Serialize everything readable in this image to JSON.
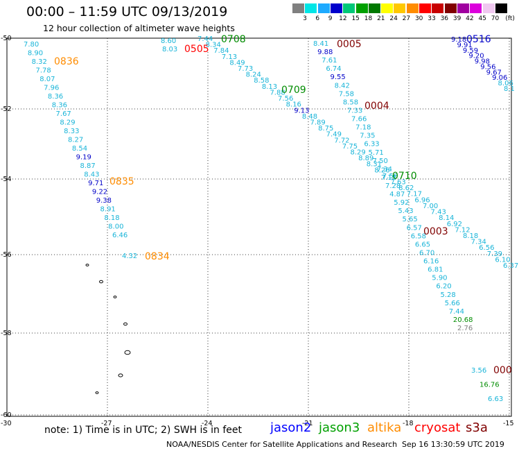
{
  "header": {
    "title": "00:00 – 11:59 UTC 09/13/2019",
    "subtitle": "12 hour collection of altimeter wave heights"
  },
  "legend": {
    "unit": "(ft)",
    "bins": [
      {
        "color": "#808080",
        "label": "3"
      },
      {
        "color": "#00e6e6",
        "label": "6"
      },
      {
        "color": "#1eaaff",
        "label": "9"
      },
      {
        "color": "#0000cc",
        "label": "12"
      },
      {
        "color": "#00c878",
        "label": "15"
      },
      {
        "color": "#00a000",
        "label": "18"
      },
      {
        "color": "#007800",
        "label": "21"
      },
      {
        "color": "#ffff00",
        "label": "24"
      },
      {
        "color": "#ffc800",
        "label": "27"
      },
      {
        "color": "#ff8c00",
        "label": "30"
      },
      {
        "color": "#ff0000",
        "label": "33"
      },
      {
        "color": "#c80000",
        "label": "36"
      },
      {
        "color": "#800000",
        "label": "39"
      },
      {
        "color": "#a000a0",
        "label": "42"
      },
      {
        "color": "#dc00dc",
        "label": "45"
      },
      {
        "color": "#f0c8f0",
        "label": "70"
      },
      {
        "color": "#000000",
        "label": ""
      }
    ]
  },
  "map": {
    "lon_ticks": [
      "-30",
      "-27",
      "-24",
      "-21",
      "-18",
      "-15"
    ],
    "lat_ticks": [
      "-50",
      "-52",
      "-54",
      "-56",
      "-58",
      "-60"
    ],
    "lon_values": [
      -30,
      -27,
      -24,
      -21,
      -18,
      -15
    ],
    "lat_values": [
      -50,
      -52,
      -54,
      -56,
      -58,
      -60
    ]
  },
  "colors": {
    "cyan": "#18b4d8",
    "blue": "#0000c8",
    "orange": "#ff8c00",
    "red": "#ff0000",
    "dkred": "#800000",
    "green": "#008c00",
    "gray": "#808080",
    "jason2": "#0000ff",
    "jason3": "#00a000",
    "altika": "#ff8c00",
    "cryosat": "#ff0000",
    "s3a": "#800000"
  },
  "track_data": [
    {
      "track": "0836",
      "label": "0836",
      "label_color": "orange",
      "readings": [
        {
          "v": "7.80",
          "c": "cyan"
        },
        {
          "v": "8.90",
          "c": "cyan"
        },
        {
          "v": "8.32",
          "c": "cyan"
        },
        {
          "v": "7.78",
          "c": "cyan"
        },
        {
          "v": "8.07",
          "c": "cyan"
        },
        {
          "v": "7.96",
          "c": "cyan"
        },
        {
          "v": "8.36",
          "c": "cyan"
        },
        {
          "v": "8.36",
          "c": "cyan"
        },
        {
          "v": "7.67",
          "c": "cyan"
        },
        {
          "v": "8.29",
          "c": "cyan"
        },
        {
          "v": "8.33",
          "c": "cyan"
        },
        {
          "v": "8.27",
          "c": "cyan"
        },
        {
          "v": "8.54",
          "c": "cyan"
        },
        {
          "v": "9.19",
          "c": "blue"
        },
        {
          "v": "8.87",
          "c": "cyan"
        },
        {
          "v": "8.43",
          "c": "cyan"
        },
        {
          "v": "9.71",
          "c": "blue"
        },
        {
          "v": "9.22",
          "c": "blue"
        },
        {
          "v": "9.38",
          "c": "blue"
        },
        {
          "v": "8.91",
          "c": "cyan"
        },
        {
          "v": "8.18",
          "c": "cyan"
        },
        {
          "v": "8.00",
          "c": "cyan"
        },
        {
          "v": "6.46",
          "c": "cyan"
        }
      ]
    },
    {
      "track": "0835",
      "label": "0835",
      "label_color": "orange",
      "readings": []
    },
    {
      "track": "0834",
      "label": "0834",
      "label_color": "orange",
      "readings": [
        {
          "v": "4.32",
          "c": "cyan"
        }
      ]
    },
    {
      "track": "0505",
      "label": "0505",
      "label_color": "red",
      "readings": [
        {
          "v": "8.60",
          "c": "cyan"
        },
        {
          "v": "8.03",
          "c": "cyan"
        }
      ]
    },
    {
      "track": "0708",
      "label": "0708",
      "label_color": "green",
      "readings": [
        {
          "v": "7.44",
          "c": "cyan"
        },
        {
          "v": "8.34",
          "c": "cyan"
        },
        {
          "v": "7.84",
          "c": "cyan"
        },
        {
          "v": "7.13",
          "c": "cyan"
        },
        {
          "v": "8.49",
          "c": "cyan"
        },
        {
          "v": "7.73",
          "c": "cyan"
        },
        {
          "v": "8.24",
          "c": "cyan"
        },
        {
          "v": "8.58",
          "c": "cyan"
        },
        {
          "v": "8.13",
          "c": "cyan"
        },
        {
          "v": "7.88",
          "c": "cyan"
        },
        {
          "v": "7.56",
          "c": "cyan"
        },
        {
          "v": "8.16",
          "c": "cyan"
        },
        {
          "v": "9.13",
          "c": "blue"
        },
        {
          "v": "8.48",
          "c": "cyan"
        },
        {
          "v": "7.89",
          "c": "cyan"
        },
        {
          "v": "8.75",
          "c": "cyan"
        },
        {
          "v": "7.49",
          "c": "cyan"
        },
        {
          "v": "7.72",
          "c": "cyan"
        },
        {
          "v": "7.75",
          "c": "cyan"
        },
        {
          "v": "8.29",
          "c": "cyan"
        },
        {
          "v": "8.89",
          "c": "cyan"
        },
        {
          "v": "8.31",
          "c": "cyan"
        },
        {
          "v": "8.26",
          "c": "cyan"
        },
        {
          "v": "7.56",
          "c": "cyan"
        },
        {
          "v": "7.63",
          "c": "cyan"
        },
        {
          "v": "8.62",
          "c": "cyan"
        },
        {
          "v": "7.17",
          "c": "cyan"
        },
        {
          "v": "6.96",
          "c": "cyan"
        },
        {
          "v": "7.00",
          "c": "cyan"
        },
        {
          "v": "7.43",
          "c": "cyan"
        },
        {
          "v": "8.14",
          "c": "cyan"
        },
        {
          "v": "6.92",
          "c": "cyan"
        },
        {
          "v": "7.12",
          "c": "cyan"
        },
        {
          "v": "8.18",
          "c": "cyan"
        },
        {
          "v": "7.34",
          "c": "cyan"
        },
        {
          "v": "6.56",
          "c": "cyan"
        },
        {
          "v": "7.39",
          "c": "cyan"
        },
        {
          "v": "6.10",
          "c": "cyan"
        },
        {
          "v": "6.37",
          "c": "cyan"
        }
      ]
    },
    {
      "track": "0709",
      "label": "0709",
      "label_color": "green",
      "readings": []
    },
    {
      "track": "0005",
      "label": "0005",
      "label_color": "dkred",
      "readings": [
        {
          "v": "8.41",
          "c": "cyan"
        },
        {
          "v": "9.88",
          "c": "blue"
        },
        {
          "v": "7.61",
          "c": "cyan"
        },
        {
          "v": "6.74",
          "c": "cyan"
        },
        {
          "v": "9.55",
          "c": "blue"
        },
        {
          "v": "8.42",
          "c": "cyan"
        },
        {
          "v": "7.58",
          "c": "cyan"
        },
        {
          "v": "8.58",
          "c": "cyan"
        },
        {
          "v": "7.33",
          "c": "cyan"
        },
        {
          "v": "7.66",
          "c": "cyan"
        },
        {
          "v": "7.18",
          "c": "cyan"
        },
        {
          "v": "7.35",
          "c": "cyan"
        },
        {
          "v": "6.33",
          "c": "cyan"
        },
        {
          "v": "5.71",
          "c": "cyan"
        },
        {
          "v": "7.50",
          "c": "cyan"
        },
        {
          "v": "7.34",
          "c": "cyan"
        },
        {
          "v": "7.12",
          "c": "cyan"
        },
        {
          "v": "7.28",
          "c": "cyan"
        },
        {
          "v": "4.87",
          "c": "cyan"
        },
        {
          "v": "5.92",
          "c": "cyan"
        },
        {
          "v": "5.43",
          "c": "cyan"
        },
        {
          "v": "5.65",
          "c": "cyan"
        },
        {
          "v": "6.57",
          "c": "cyan"
        },
        {
          "v": "6.58",
          "c": "cyan"
        },
        {
          "v": "6.65",
          "c": "cyan"
        },
        {
          "v": "6.70",
          "c": "cyan"
        },
        {
          "v": "6.16",
          "c": "cyan"
        },
        {
          "v": "6.81",
          "c": "cyan"
        },
        {
          "v": "5.90",
          "c": "cyan"
        },
        {
          "v": "6.20",
          "c": "cyan"
        },
        {
          "v": "5.28",
          "c": "cyan"
        },
        {
          "v": "5.66",
          "c": "cyan"
        },
        {
          "v": "7.44",
          "c": "cyan"
        },
        {
          "v": "20.68",
          "c": "green"
        },
        {
          "v": "2.76",
          "c": "gray"
        }
      ]
    },
    {
      "track": "0004",
      "label": "0004",
      "label_color": "dkred",
      "readings": []
    },
    {
      "track": "0710",
      "label": "0710",
      "label_color": "green",
      "readings": []
    },
    {
      "track": "0003",
      "label": "0003",
      "label_color": "dkred",
      "readings": []
    },
    {
      "track": "0516",
      "label": "0516",
      "label_color": "blue",
      "readings": [
        {
          "v": "9.18",
          "c": "blue"
        },
        {
          "v": "9.91",
          "c": "blue"
        },
        {
          "v": "9.59",
          "c": "blue"
        },
        {
          "v": "9.20",
          "c": "blue"
        },
        {
          "v": "9.98",
          "c": "blue"
        },
        {
          "v": "9.56",
          "c": "blue"
        },
        {
          "v": "9.67",
          "c": "blue"
        },
        {
          "v": "9.06",
          "c": "blue"
        },
        {
          "v": "8.06",
          "c": "cyan"
        },
        {
          "v": "8.1",
          "c": "cyan"
        }
      ]
    },
    {
      "track": "000",
      "label": "000",
      "label_color": "dkred",
      "readings": [
        {
          "v": "3.56",
          "c": "cyan"
        },
        {
          "v": "16.76",
          "c": "green"
        },
        {
          "v": "6.63",
          "c": "cyan"
        }
      ]
    }
  ],
  "footer": {
    "note": "note: 1) Time is in UTC; 2) SWH is in feet",
    "satellites": [
      {
        "name": "jason2",
        "color": "#0000ff"
      },
      {
        "name": "jason3",
        "color": "#00a000"
      },
      {
        "name": "altika",
        "color": "#ff8c00"
      },
      {
        "name": "cryosat",
        "color": "#ff0000"
      },
      {
        "name": "s3a",
        "color": "#800000"
      }
    ],
    "credit": "NOAA/NESDIS Center for Satellite Applications and Research",
    "generated": "Sep 16 13:30:59 UTC 2019"
  }
}
